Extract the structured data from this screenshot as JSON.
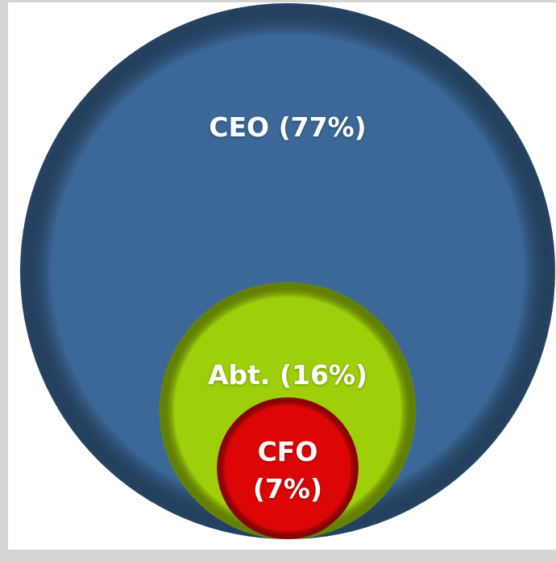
{
  "chart_data": {
    "type": "nested_circles",
    "values": [
      77,
      16,
      7
    ],
    "value_labels": [
      "CEO (77%)",
      "Abt. (16%)",
      "CFO (7%)"
    ],
    "colors": [
      "#3b6898",
      "#9fce0a",
      "#dc0606"
    ]
  }
}
